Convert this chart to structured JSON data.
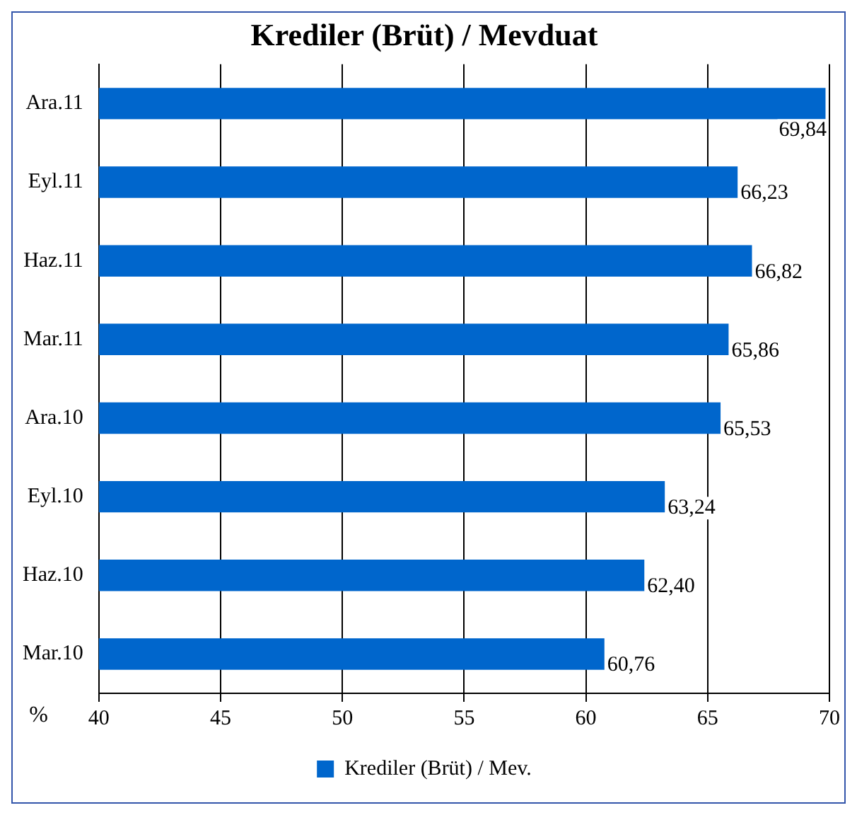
{
  "chart_data": {
    "type": "bar",
    "orientation": "horizontal",
    "title": "Krediler (Brüt) / Mevduat",
    "xlabel": "%",
    "categories": [
      "Ara.11",
      "Eyl.11",
      "Haz.11",
      "Mar.11",
      "Ara.10",
      "Eyl.10",
      "Haz.10",
      "Mar.10"
    ],
    "series": [
      {
        "name": "Krediler (Brüt) / Mev.",
        "color": "#0066cc",
        "values": [
          69.84,
          66.23,
          66.82,
          65.86,
          65.53,
          63.24,
          62.4,
          60.76
        ],
        "value_labels": [
          "69,84",
          "66,23",
          "66,82",
          "65,86",
          "65,53",
          "63,24",
          "62,40",
          "60,76"
        ]
      }
    ],
    "xlim": [
      40,
      70
    ],
    "xticks": [
      40,
      45,
      50,
      55,
      60,
      65,
      70
    ],
    "grid": "x",
    "legend": "bottom"
  }
}
